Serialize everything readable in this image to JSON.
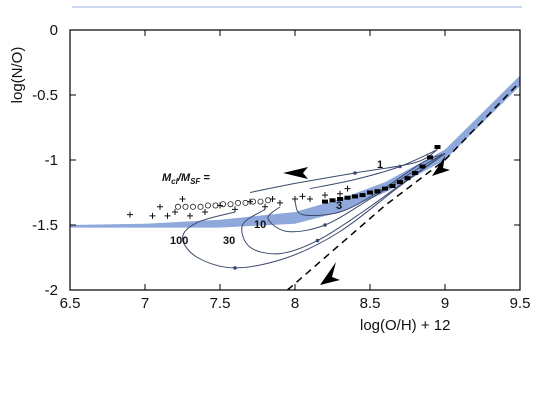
{
  "chart_data": {
    "type": "scatter",
    "title": "",
    "xlabel": "log(O/H) + 12",
    "ylabel": "log(N/O)",
    "xlim": [
      6.5,
      9.5
    ],
    "ylim": [
      -2,
      0
    ],
    "xticks": [
      "6.5",
      "7",
      "7.5",
      "8",
      "8.5",
      "9",
      "9.5"
    ],
    "yticks": [
      "0",
      "-0.5",
      "-1",
      "-1.5",
      "-2"
    ],
    "grid": false,
    "colors": {
      "band": "#8fa8db",
      "curves": "#3a4a6e",
      "frame": "#000000"
    },
    "annotation": {
      "ratio_label_main": "M",
      "ratio_label_sub1": "cl",
      "ratio_label_mid": "/M",
      "ratio_label_sub2": "SF",
      "ratio_label_end": " ="
    },
    "curve_labels": [
      "100",
      "30",
      "10",
      "3",
      "1"
    ],
    "series": [
      {
        "kind": "band",
        "upper": [
          [
            6.5,
            -1.5
          ],
          [
            7.0,
            -1.49
          ],
          [
            7.5,
            -1.46
          ],
          [
            8.0,
            -1.4
          ],
          [
            8.3,
            -1.3
          ],
          [
            8.6,
            -1.17
          ],
          [
            9.0,
            -0.92
          ],
          [
            9.5,
            -0.35
          ]
        ],
        "lower": [
          [
            6.5,
            -1.52
          ],
          [
            7.0,
            -1.52
          ],
          [
            7.5,
            -1.52
          ],
          [
            8.0,
            -1.49
          ],
          [
            8.3,
            -1.4
          ],
          [
            8.6,
            -1.25
          ],
          [
            9.0,
            -1.0
          ],
          [
            9.5,
            -0.43
          ]
        ]
      },
      {
        "kind": "dashed_line",
        "points": [
          [
            7.95,
            -2.0
          ],
          [
            8.6,
            -1.35
          ],
          [
            9.0,
            -1.0
          ],
          [
            9.5,
            -0.4
          ]
        ]
      },
      {
        "kind": "cross_points",
        "points": [
          [
            6.9,
            -1.42
          ],
          [
            7.05,
            -1.43
          ],
          [
            7.1,
            -1.36
          ],
          [
            7.15,
            -1.43
          ],
          [
            7.2,
            -1.4
          ],
          [
            7.25,
            -1.3
          ],
          [
            7.3,
            -1.43
          ],
          [
            7.4,
            -1.4
          ],
          [
            7.5,
            -1.35
          ],
          [
            7.6,
            -1.38
          ],
          [
            7.7,
            -1.32
          ],
          [
            7.8,
            -1.36
          ],
          [
            7.85,
            -1.3
          ],
          [
            7.9,
            -1.33
          ],
          [
            8.0,
            -1.3
          ],
          [
            8.05,
            -1.28
          ],
          [
            8.1,
            -1.3
          ],
          [
            8.2,
            -1.27
          ],
          [
            8.3,
            -1.26
          ],
          [
            8.35,
            -1.22
          ]
        ]
      },
      {
        "kind": "circle_points",
        "points": [
          [
            7.22,
            -1.36
          ],
          [
            7.27,
            -1.36
          ],
          [
            7.32,
            -1.36
          ],
          [
            7.37,
            -1.36
          ],
          [
            7.42,
            -1.35
          ],
          [
            7.47,
            -1.35
          ],
          [
            7.52,
            -1.34
          ],
          [
            7.57,
            -1.34
          ],
          [
            7.62,
            -1.33
          ],
          [
            7.67,
            -1.33
          ],
          [
            7.72,
            -1.32
          ],
          [
            7.77,
            -1.32
          ],
          [
            7.82,
            -1.31
          ]
        ]
      },
      {
        "kind": "dense_points",
        "points": [
          [
            8.2,
            -1.32
          ],
          [
            8.25,
            -1.31
          ],
          [
            8.3,
            -1.3
          ],
          [
            8.35,
            -1.29
          ],
          [
            8.4,
            -1.28
          ],
          [
            8.45,
            -1.27
          ],
          [
            8.5,
            -1.25
          ],
          [
            8.55,
            -1.24
          ],
          [
            8.6,
            -1.22
          ],
          [
            8.65,
            -1.2
          ],
          [
            8.7,
            -1.17
          ],
          [
            8.75,
            -1.14
          ],
          [
            8.8,
            -1.1
          ],
          [
            8.85,
            -1.05
          ],
          [
            8.9,
            -0.98
          ],
          [
            8.95,
            -0.9
          ]
        ]
      },
      {
        "kind": "model_curves",
        "curves": [
          {
            "label": "100",
            "points": [
              [
                7.6,
                -1.4
              ],
              [
                7.35,
                -1.48
              ],
              [
                7.25,
                -1.6
              ],
              [
                7.35,
                -1.75
              ],
              [
                7.6,
                -1.83
              ],
              [
                7.95,
                -1.75
              ],
              [
                8.3,
                -1.55
              ],
              [
                8.7,
                -1.2
              ],
              [
                9.0,
                -0.95
              ]
            ]
          },
          {
            "label": "30",
            "points": [
              [
                7.8,
                -1.38
              ],
              [
                7.65,
                -1.5
              ],
              [
                7.7,
                -1.67
              ],
              [
                7.9,
                -1.72
              ],
              [
                8.15,
                -1.62
              ],
              [
                8.45,
                -1.4
              ],
              [
                8.75,
                -1.15
              ],
              [
                9.0,
                -0.95
              ]
            ]
          },
          {
            "label": "10",
            "points": [
              [
                7.9,
                -1.36
              ],
              [
                7.82,
                -1.45
              ],
              [
                7.95,
                -1.55
              ],
              [
                8.2,
                -1.5
              ],
              [
                8.5,
                -1.3
              ],
              [
                8.8,
                -1.08
              ],
              [
                9.0,
                -0.95
              ]
            ]
          },
          {
            "label": "3",
            "points": [
              [
                8.0,
                -1.32
              ],
              [
                8.05,
                -1.42
              ],
              [
                8.3,
                -1.4
              ],
              [
                8.55,
                -1.25
              ],
              [
                8.85,
                -1.02
              ],
              [
                9.0,
                -0.95
              ]
            ]
          },
          {
            "label": "1",
            "points": [
              [
                8.1,
                -1.22
              ],
              [
                8.4,
                -1.15
              ],
              [
                8.7,
                -1.05
              ],
              [
                8.95,
                -0.92
              ]
            ]
          },
          {
            "label": "",
            "points": [
              [
                7.7,
                -1.25
              ],
              [
                8.0,
                -1.18
              ],
              [
                8.4,
                -1.1
              ],
              [
                8.8,
                -1.02
              ],
              [
                8.95,
                -0.92
              ]
            ]
          }
        ]
      }
    ]
  }
}
